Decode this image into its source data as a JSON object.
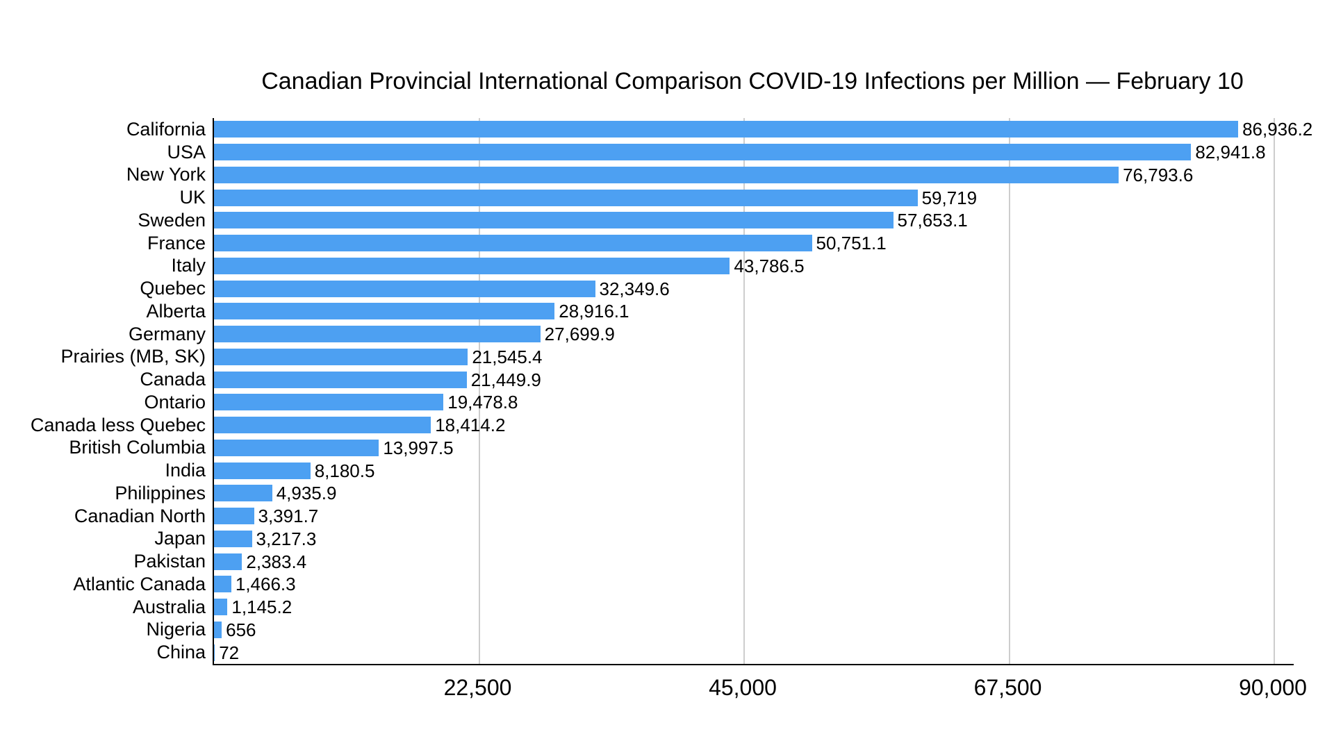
{
  "chart_data": {
    "type": "bar",
    "orientation": "horizontal",
    "title": "Canadian Provincial International Comparison COVID-19 Infections per Million — February 10",
    "xlabel": "",
    "ylabel": "",
    "categories": [
      "California",
      "USA",
      "New York",
      "UK",
      "Sweden",
      "France",
      "Italy",
      "Quebec",
      "Alberta",
      "Germany",
      "Prairies (MB, SK)",
      "Canada",
      "Ontario",
      "Canada less Quebec",
      "British Columbia",
      "India",
      "Philippines",
      "Canadian North",
      "Japan",
      "Pakistan",
      "Atlantic Canada",
      "Australia",
      "Nigeria",
      "China"
    ],
    "values": [
      86936.2,
      82941.8,
      76793.6,
      59719,
      57653.1,
      50751.1,
      43786.5,
      32349.6,
      28916.1,
      27699.9,
      21545.4,
      21449.9,
      19478.8,
      18414.2,
      13997.5,
      8180.5,
      4935.9,
      3391.7,
      3217.3,
      2383.4,
      1466.3,
      1145.2,
      656,
      72
    ],
    "value_labels": [
      "86,936.2",
      "82,941.8",
      "76,793.6",
      "59,719",
      "57,653.1",
      "50,751.1",
      "43,786.5",
      "32,349.6",
      "28,916.1",
      "27,699.9",
      "21,545.4",
      "21,449.9",
      "19,478.8",
      "18,414.2",
      "13,997.5",
      "8,180.5",
      "4,935.9",
      "3,391.7",
      "3,217.3",
      "2,383.4",
      "1,466.3",
      "1,145.2",
      "656",
      "72"
    ],
    "xlim": [
      0,
      91650
    ],
    "x_ticks": [
      {
        "value": 22500,
        "label": "22,500"
      },
      {
        "value": 45000,
        "label": "45,000"
      },
      {
        "value": 67500,
        "label": "67,500"
      },
      {
        "value": 90000,
        "label": "90,000"
      }
    ],
    "grid": "vertical",
    "legend": "none",
    "colors": {
      "bar": "#4da0f2",
      "gridline": "#cdcdcd",
      "axis": "#000000",
      "text": "#000000",
      "background": "#ffffff"
    }
  }
}
